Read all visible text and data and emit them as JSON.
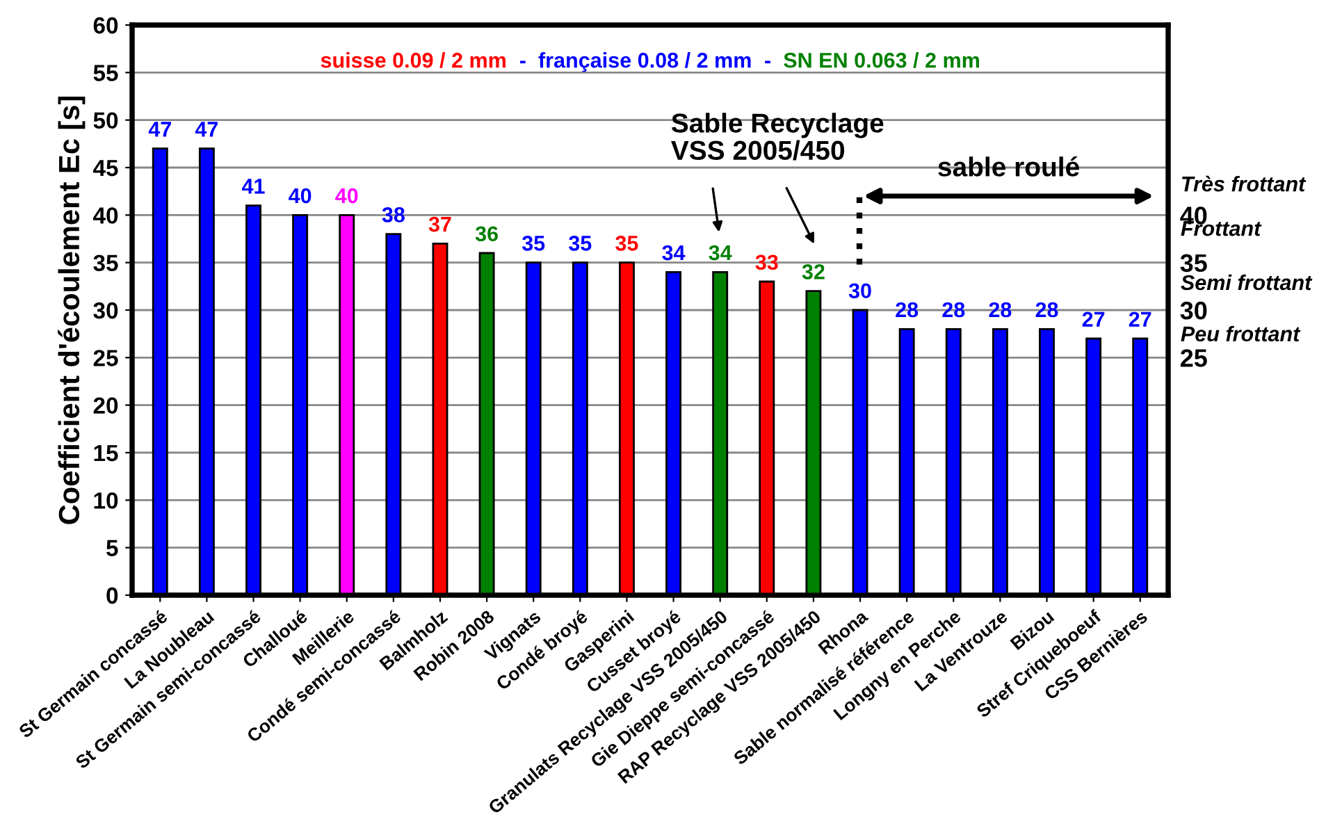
{
  "chart_data": {
    "type": "bar",
    "ylabel": "Coefficient d'écoulement Ec [s]",
    "categories": [
      "St Germain concassé",
      "La Noubleau",
      "St Germain semi-concassé",
      "Challoué",
      "Meillerie",
      "Condé semi-concassé",
      "Balmholz",
      "Robin 2008",
      "Vignats",
      "Condé broyé",
      "Gasperini",
      "Cusset broyé",
      "Granulats Recyclage VSS 2005/450",
      "Gie Dieppe semi-concassé",
      "RAP Recyclage VSS 2005/450",
      "Rhona",
      "Sable normalisé référence",
      "Longny en Perche",
      "La Ventrouze",
      "Bizou",
      "Stref Criqueboeuf",
      "CSS Bernières"
    ],
    "series": [
      {
        "name": "suisse 0.09 / 2 mm",
        "color": "#ff0000",
        "values": [
          null,
          null,
          null,
          null,
          null,
          null,
          37,
          null,
          null,
          null,
          35,
          null,
          null,
          33,
          null,
          null,
          null,
          null,
          null,
          null,
          null,
          null
        ]
      },
      {
        "name": "française 0.08 / 2 mm",
        "color": "#0000ff",
        "values": [
          47,
          47,
          41,
          40,
          null,
          38,
          null,
          null,
          35,
          35,
          null,
          34,
          null,
          null,
          null,
          30,
          28,
          28,
          28,
          28,
          27,
          27
        ]
      },
      {
        "name": "SN EN 0.063 / 2 mm",
        "color": "#008000",
        "values": [
          null,
          null,
          null,
          null,
          null,
          null,
          null,
          36,
          null,
          null,
          null,
          null,
          34,
          null,
          32,
          null,
          null,
          null,
          null,
          null,
          null,
          null
        ]
      },
      {
        "color": "#ff00ff",
        "values": [
          null,
          null,
          null,
          null,
          40,
          null,
          null,
          null,
          null,
          null,
          null,
          null,
          null,
          null,
          null,
          null,
          null,
          null,
          null,
          null,
          null,
          null
        ]
      }
    ],
    "ylim": [
      0,
      60
    ],
    "yticks": [
      0,
      5,
      10,
      15,
      20,
      25,
      30,
      35,
      40,
      45,
      50,
      55,
      60
    ],
    "y2lim": [
      0,
      60
    ],
    "y2ticks": [
      25,
      30,
      35,
      40
    ],
    "annotations": [
      "-",
      "-",
      "Sable Recyclage\nVSS 2005/450",
      "sable roulé",
      "Très frottant",
      "Frottant",
      "Semi frottant",
      "Peu frottant"
    ],
    "data_labels": true,
    "grid": "y",
    "legend": "top"
  }
}
